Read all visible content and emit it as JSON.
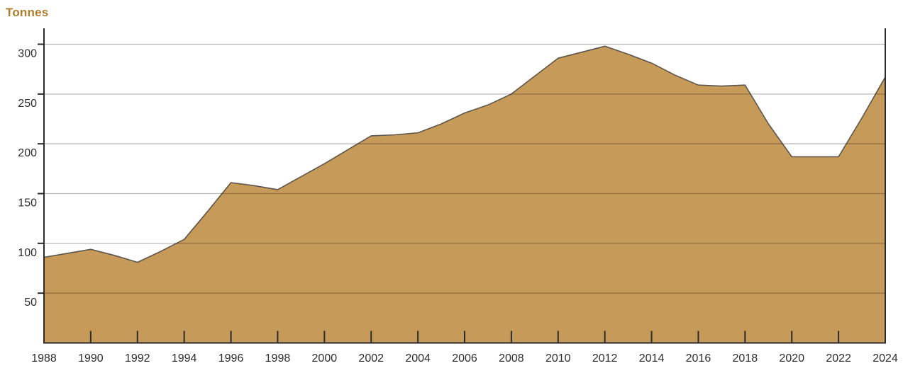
{
  "chart": {
    "colors": {
      "title": "#AE7D2A",
      "area_fill": "#C69A59",
      "area_line": "#5E564A",
      "axis": "#2B2B2B",
      "grid": "rgba(0,0,0,0.27)",
      "tick_label": "#2D2D2D",
      "background": "#FFFFFF"
    }
  },
  "chart_data": {
    "type": "area",
    "title": "Tonnes",
    "ylabel": "Tonnes",
    "xlabel": "",
    "x": [
      1988,
      1989,
      1990,
      1991,
      1992,
      1993,
      1994,
      1995,
      1996,
      1997,
      1998,
      1999,
      2000,
      2001,
      2002,
      2003,
      2004,
      2005,
      2006,
      2007,
      2008,
      2009,
      2010,
      2011,
      2012,
      2013,
      2014,
      2015,
      2016,
      2017,
      2018,
      2019,
      2020,
      2021,
      2022,
      2023,
      2024
    ],
    "values": [
      86,
      90,
      94,
      88,
      81,
      92,
      104,
      132,
      161,
      158,
      154,
      167,
      180,
      194,
      208,
      209,
      211,
      220,
      231,
      239,
      250,
      268,
      286,
      292,
      298,
      290,
      281,
      269,
      259,
      258,
      259,
      220,
      187,
      187,
      187,
      226,
      267
    ],
    "series": [
      {
        "name": "Tonnes",
        "values": [
          86,
          90,
          94,
          88,
          81,
          92,
          104,
          132,
          161,
          158,
          154,
          167,
          180,
          194,
          208,
          209,
          211,
          220,
          231,
          239,
          250,
          268,
          286,
          292,
          298,
          290,
          281,
          269,
          259,
          258,
          259,
          220,
          187,
          187,
          187,
          226,
          267
        ]
      }
    ],
    "xlim": [
      1988,
      2024
    ],
    "ylim": [
      0,
      315
    ],
    "yticks": [
      50,
      100,
      150,
      200,
      250,
      300
    ],
    "xticks": [
      1988,
      1990,
      1992,
      1994,
      1996,
      1998,
      2000,
      2002,
      2004,
      2006,
      2008,
      2010,
      2012,
      2014,
      2016,
      2018,
      2020,
      2022,
      2024
    ],
    "xtick_labels": [
      "1988",
      "1990",
      "1992",
      "1994",
      "1996",
      "1998",
      "2000",
      "2002",
      "2004",
      "2006",
      "2008",
      "2010",
      "2012",
      "2014",
      "2016",
      "2018",
      "2020",
      "2022",
      "2024"
    ],
    "grid": "horizontal",
    "legend": "none"
  }
}
